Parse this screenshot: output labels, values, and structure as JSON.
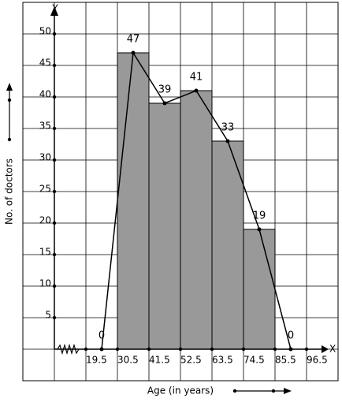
{
  "chart_data": {
    "type": "histogram",
    "x_label": "Age (in years)",
    "y_label": "No. of doctors",
    "x_axis_letter": "X",
    "y_axis_letter": "Y",
    "bins": [
      30.5,
      41.5,
      52.5,
      63.5,
      74.5,
      85.5
    ],
    "values": [
      47,
      39,
      41,
      33,
      19
    ],
    "color": "#999999",
    "polygon": {
      "x": [
        25,
        36,
        47,
        58,
        69,
        80,
        91
      ],
      "values": [
        0,
        47,
        39,
        41,
        33,
        19,
        0
      ],
      "color": "#000000"
    },
    "xlim": [
      -2.5,
      107.5
    ],
    "ylim": [
      -5,
      55
    ],
    "xticks": [
      19.5,
      30.5,
      41.5,
      52.5,
      63.5,
      74.5,
      85.5,
      96.5
    ],
    "yticks": [
      0,
      5,
      10,
      15,
      20,
      25,
      30,
      35,
      40,
      45,
      50
    ],
    "grid": true
  }
}
